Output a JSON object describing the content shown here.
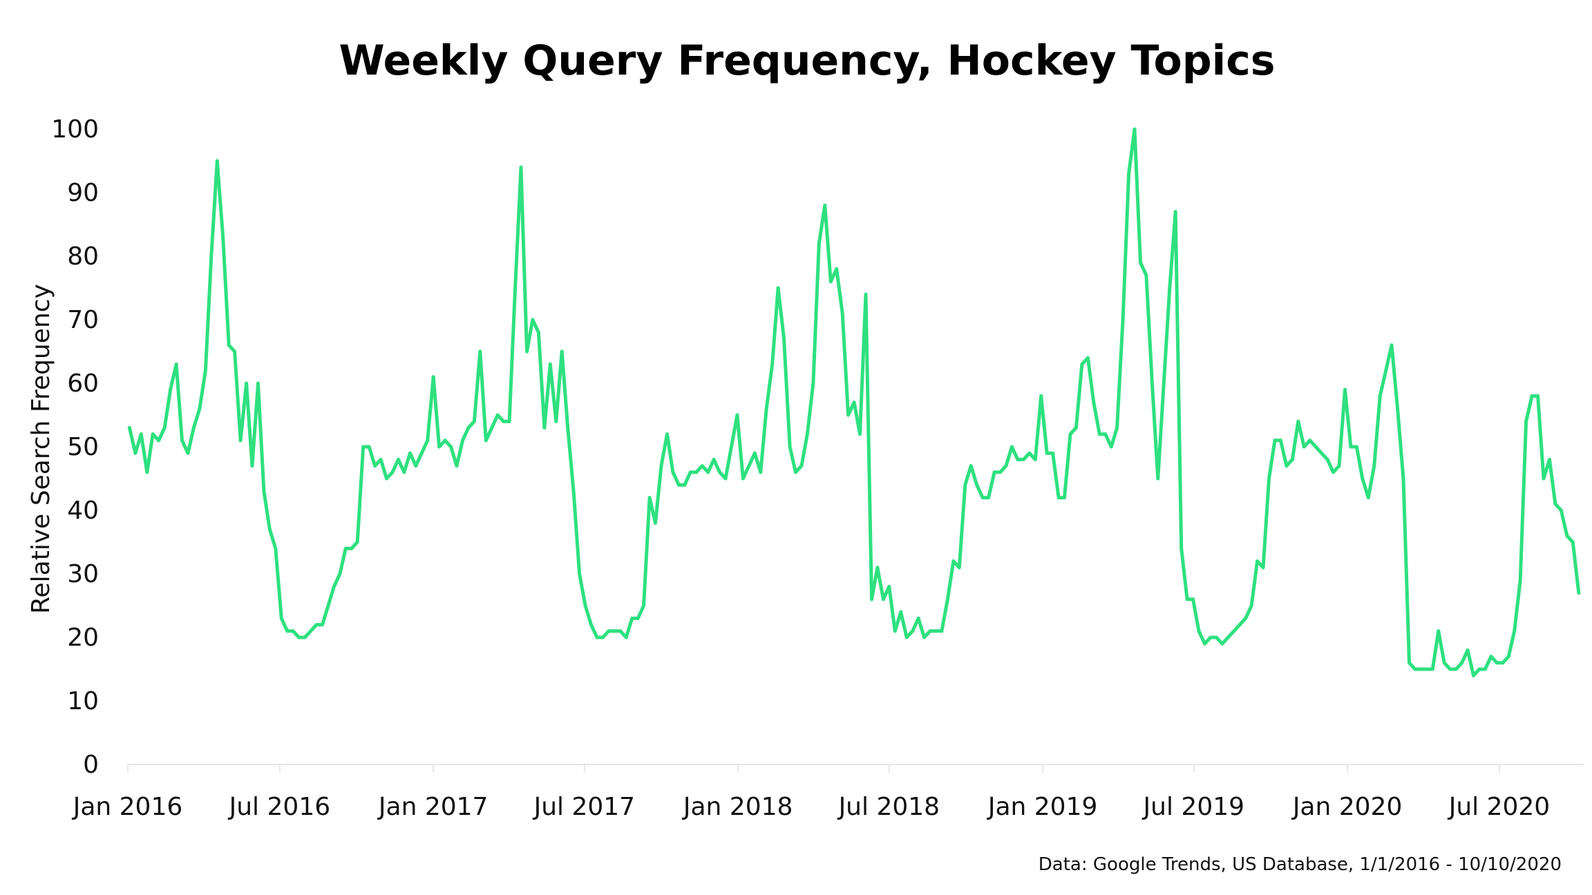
{
  "chart_data": {
    "type": "line",
    "title": "Weekly Query Frequency, Hockey Topics",
    "xlabel": "",
    "ylabel": "Relative Search Frequency",
    "source": "Data: Google Trends, US Database, 1/1/2016 - 10/10/2020",
    "x_start": "2016-01-03",
    "x_step": "1 week",
    "xlim": [
      "2016-01-01",
      "2020-10-10"
    ],
    "ylim": [
      0,
      100
    ],
    "yticks": [
      0,
      10,
      20,
      30,
      40,
      50,
      60,
      70,
      80,
      90,
      100
    ],
    "xticks": [
      {
        "label": "Jan 2016",
        "date": "2016-01-01"
      },
      {
        "label": "Jul 2016",
        "date": "2016-07-01"
      },
      {
        "label": "Jan 2017",
        "date": "2017-01-01"
      },
      {
        "label": "Jul 2017",
        "date": "2017-07-01"
      },
      {
        "label": "Jan 2018",
        "date": "2018-01-01"
      },
      {
        "label": "Jul 2018",
        "date": "2018-07-01"
      },
      {
        "label": "Jan 2019",
        "date": "2019-01-01"
      },
      {
        "label": "Jul 2019",
        "date": "2019-07-01"
      },
      {
        "label": "Jan 2020",
        "date": "2020-01-01"
      },
      {
        "label": "Jul 2020",
        "date": "2020-07-01"
      }
    ],
    "grid": false,
    "legend": "none",
    "line_color": "#2ee07f",
    "series": [
      {
        "values": [
          53,
          49,
          52,
          46,
          52,
          51,
          53,
          59,
          63,
          51,
          49,
          53,
          56,
          62,
          80,
          95,
          83,
          66,
          65,
          51,
          60,
          47,
          60,
          43,
          37,
          34,
          23,
          21,
          21,
          20,
          20,
          21,
          22,
          22,
          25,
          28,
          30,
          34,
          34,
          35,
          50,
          50,
          47,
          48,
          45,
          46,
          48,
          46,
          49,
          47,
          49,
          51,
          61,
          50,
          51,
          50,
          47,
          51,
          53,
          54,
          65,
          51,
          53,
          55,
          54,
          54,
          75,
          94,
          65,
          70,
          68,
          53,
          63,
          54,
          65,
          53,
          43,
          30,
          25,
          22,
          20,
          20,
          21,
          21,
          21,
          20,
          23,
          23,
          25,
          42,
          38,
          47,
          52,
          46,
          44,
          44,
          46,
          46,
          47,
          46,
          48,
          46,
          45,
          50,
          55,
          45,
          47,
          49,
          46,
          56,
          63,
          75,
          67,
          50,
          46,
          47,
          52,
          60,
          82,
          88,
          76,
          78,
          71,
          55,
          57,
          52,
          74,
          26,
          31,
          26,
          28,
          21,
          24,
          20,
          21,
          23,
          20,
          21,
          21,
          21,
          26,
          32,
          31,
          44,
          47,
          44,
          42,
          42,
          46,
          46,
          47,
          50,
          48,
          48,
          49,
          48,
          58,
          49,
          49,
          42,
          42,
          52,
          53,
          63,
          64,
          57,
          52,
          52,
          50,
          53,
          70,
          93,
          100,
          79,
          77,
          60,
          45,
          60,
          75,
          87,
          34,
          26,
          26,
          21,
          19,
          20,
          20,
          19,
          20,
          21,
          22,
          23,
          25,
          32,
          31,
          45,
          51,
          51,
          47,
          48,
          54,
          50,
          51,
          50,
          49,
          48,
          46,
          47,
          59,
          50,
          50,
          45,
          42,
          47,
          58,
          62,
          66,
          56,
          45,
          16,
          15,
          15,
          15,
          15,
          21,
          16,
          15,
          15,
          16,
          18,
          14,
          15,
          15,
          17,
          16,
          16,
          17,
          21,
          29,
          54,
          58,
          58,
          45,
          48,
          41,
          40,
          36,
          35,
          27
        ]
      }
    ]
  }
}
